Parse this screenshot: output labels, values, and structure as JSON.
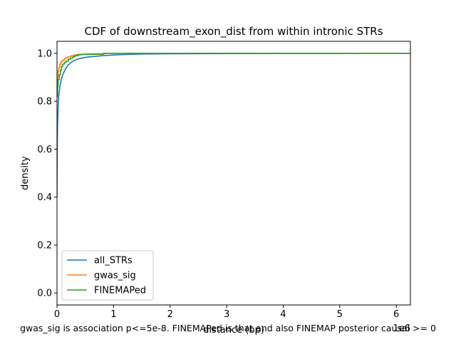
{
  "chart_data": {
    "type": "line",
    "title": "CDF of downstream_exon_dist from within intronic STRs",
    "xlabel": "distance (bp)",
    "ylabel": "density",
    "x_offset_text": "1e6",
    "caption": "gwas_sig is association p<=5e-8. FINEMAPed is that and also FINEMAP posterior causal >= 0",
    "xlim": [
      0,
      6.25
    ],
    "ylim": [
      -0.05,
      1.05
    ],
    "x_ticks": [
      0,
      1,
      2,
      3,
      4,
      5,
      6
    ],
    "y_ticks": [
      0.0,
      0.2,
      0.4,
      0.6,
      0.8,
      1.0
    ],
    "x_tick_labels": [
      "0",
      "1",
      "2",
      "3",
      "4",
      "5",
      "6"
    ],
    "y_tick_labels": [
      "0.0",
      "0.2",
      "0.4",
      "0.6",
      "0.8",
      "1.0"
    ],
    "legend_position": "lower left",
    "grid": false,
    "series": [
      {
        "name": "all_STRs",
        "color": "#1f77b4",
        "step": false,
        "x": [
          0,
          0.002,
          0.005,
          0.01,
          0.02,
          0.03,
          0.05,
          0.07,
          0.1,
          0.15,
          0.2,
          0.25,
          0.3,
          0.4,
          0.5,
          0.6,
          0.8,
          1.0,
          1.2,
          1.5,
          2.0,
          3.0,
          4.0,
          5.0,
          6.25
        ],
        "y": [
          0.4,
          0.52,
          0.62,
          0.7,
          0.78,
          0.82,
          0.86,
          0.885,
          0.91,
          0.935,
          0.952,
          0.962,
          0.97,
          0.978,
          0.983,
          0.986,
          0.99,
          0.993,
          0.995,
          0.997,
          0.998,
          0.999,
          0.9995,
          0.9998,
          1.0
        ]
      },
      {
        "name": "gwas_sig",
        "color": "#ff7f0e",
        "step": true,
        "x": [
          0,
          0.005,
          0.01,
          0.02,
          0.03,
          0.05,
          0.07,
          0.1,
          0.13,
          0.16,
          0.2,
          0.25,
          0.3,
          0.35,
          0.4,
          0.5,
          0.6,
          0.85,
          6.25
        ],
        "y": [
          0.82,
          0.86,
          0.9,
          0.925,
          0.94,
          0.955,
          0.965,
          0.972,
          0.978,
          0.982,
          0.986,
          0.99,
          0.993,
          0.995,
          0.996,
          0.997,
          0.998,
          1.0,
          1.0
        ]
      },
      {
        "name": "FINEMAPed",
        "color": "#2ca02c",
        "step": true,
        "x": [
          0,
          0.01,
          0.02,
          0.04,
          0.06,
          0.08,
          0.1,
          0.13,
          0.16,
          0.2,
          0.24,
          0.28,
          0.32,
          0.38,
          0.45,
          0.82,
          6.25
        ],
        "y": [
          0.82,
          0.86,
          0.89,
          0.91,
          0.93,
          0.945,
          0.955,
          0.962,
          0.968,
          0.975,
          0.98,
          0.985,
          0.99,
          0.994,
          0.996,
          1.0,
          1.0
        ]
      }
    ]
  }
}
